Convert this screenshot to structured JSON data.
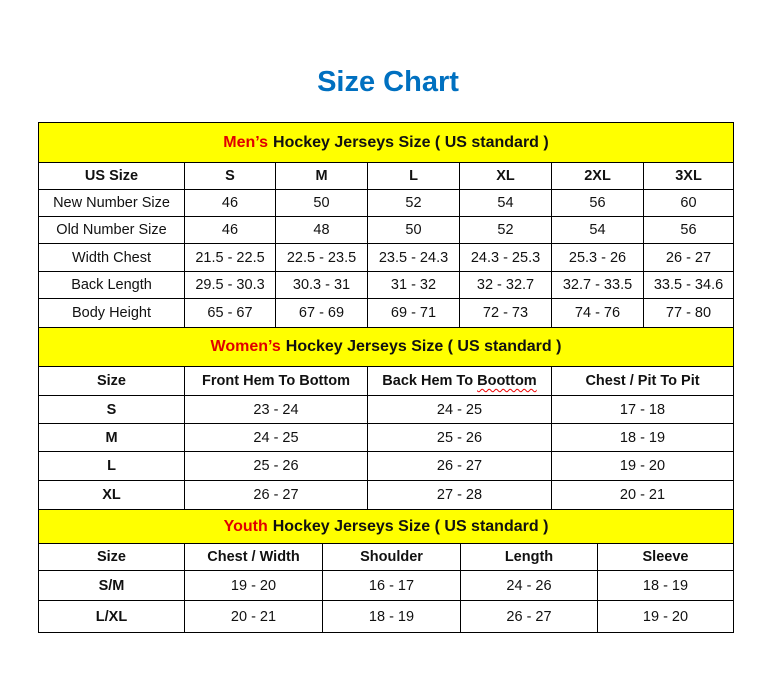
{
  "title": "Size Chart",
  "colors": {
    "title": "#0070C0",
    "section_header_bg": "#FFFF00",
    "highlight": "#E00000"
  },
  "men": {
    "heading_highlight": "Men’s",
    "heading_rest": "Hockey Jerseys Size ( US standard )",
    "columns": [
      "US Size",
      "S",
      "M",
      "L",
      "XL",
      "2XL",
      "3XL"
    ],
    "rows": [
      [
        "New Number Size",
        "46",
        "50",
        "52",
        "54",
        "56",
        "60"
      ],
      [
        "Old Number Size",
        "46",
        "48",
        "50",
        "52",
        "54",
        "56"
      ],
      [
        "Width Chest",
        "21.5 - 22.5",
        "22.5 - 23.5",
        "23.5 - 24.3",
        "24.3 - 25.3",
        "25.3 - 26",
        "26 - 27"
      ],
      [
        "Back Length",
        "29.5 - 30.3",
        "30.3 - 31",
        "31 - 32",
        "32 - 32.7",
        "32.7 - 33.5",
        "33.5 - 34.6"
      ],
      [
        "Body Height",
        "65 - 67",
        "67 - 69",
        "69 - 71",
        "72 - 73",
        "74 - 76",
        "77 - 80"
      ]
    ]
  },
  "women": {
    "heading_highlight": "Women’s",
    "heading_rest": "Hockey Jerseys Size ( US standard )",
    "columns": [
      "Size",
      "Front Hem To Bottom",
      "Back Hem To Boottom",
      "Chest / Pit To Pit"
    ],
    "rows": [
      [
        "S",
        "23 - 24",
        "24 - 25",
        "17 - 18"
      ],
      [
        "M",
        "24 - 25",
        "25 - 26",
        "18 - 19"
      ],
      [
        "L",
        "25 - 26",
        "26 - 27",
        "19 - 20"
      ],
      [
        "XL",
        "26 - 27",
        "27 - 28",
        "20 - 21"
      ]
    ]
  },
  "youth": {
    "heading_highlight": "Youth",
    "heading_rest": "Hockey Jerseys Size ( US standard )",
    "columns": [
      "Size",
      "Chest / Width",
      "Shoulder",
      "Length",
      "Sleeve"
    ],
    "rows": [
      [
        "S/M",
        "19 - 20",
        "16 - 17",
        "24 - 26",
        "18 - 19"
      ],
      [
        "L/XL",
        "20 - 21",
        "18 - 19",
        "26 - 27",
        "19 - 20"
      ]
    ]
  }
}
